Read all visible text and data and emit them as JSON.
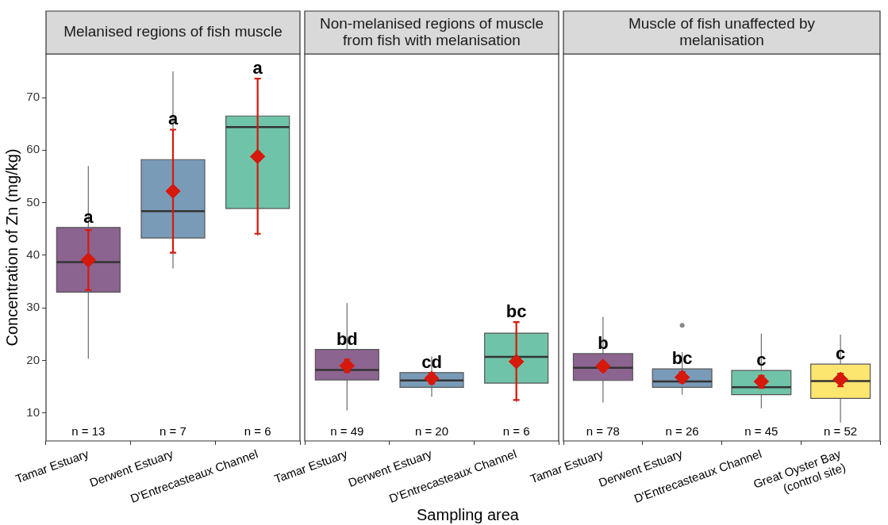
{
  "chart_data": [
    {
      "type": "box",
      "title": "Melanised regions of fish muscle",
      "ylabel": "Concentration of Zn (mg/kg)",
      "categories": [
        "Tamar Estuary",
        "Derwent Estuary",
        "D'Entrecasteaux Channel"
      ],
      "colors": [
        "#8c6490",
        "#7a9bb8",
        "#6fc3a8"
      ],
      "boxes": [
        {
          "low": 20.3,
          "q1": 33.0,
          "median": 38.7,
          "q3": 45.3,
          "high": 57.0
        },
        {
          "low": 37.5,
          "q1": 43.3,
          "median": 48.4,
          "q3": 58.2,
          "high": 75.0
        },
        {
          "low": 43.7,
          "q1": 48.9,
          "median": 64.4,
          "q3": 66.5,
          "high": 70.8
        }
      ],
      "series": [
        {
          "type": "scatter",
          "color": "#d7190c",
          "x": [
            "Tamar Estuary",
            "Derwent Estuary",
            "D'Entrecasteaux Channel"
          ],
          "values": [
            39.1,
            52.2,
            58.8
          ],
          "errors": [
            [
              33.4,
              44.8
            ],
            [
              40.5,
              63.9
            ],
            [
              44.1,
              73.6
            ]
          ]
        }
      ],
      "marker": "diamond",
      "ylim": [
        4.7,
        78.3
      ],
      "yticks": [
        10,
        20,
        30,
        40,
        50,
        60,
        70
      ],
      "grid": false,
      "annotations": [
        {
          "text": "a",
          "x": "Tamar Estuary",
          "y": 45.3
        },
        {
          "text": "a",
          "x": "Derwent Estuary",
          "y": 63.9
        },
        {
          "text": "a",
          "x": "D'Entrecasteaux Channel",
          "y": 73.6
        },
        "n = 13",
        "n = 7",
        "n = 6"
      ]
    },
    {
      "type": "box",
      "title": "Non-melanised regions of muscle from fish with melanisation",
      "xlabel": "Sampling area",
      "categories": [
        "Tamar Estuary",
        "Derwent Estuary",
        "D'Entrecasteaux Channel"
      ],
      "colors": [
        "#8c6490",
        "#7a9bb8",
        "#6fc3a8"
      ],
      "boxes": [
        {
          "low": 10.5,
          "q1": 16.3,
          "median": 18.2,
          "q3": 22.1,
          "high": 30.9
        },
        {
          "low": 13.1,
          "q1": 14.9,
          "median": 16.2,
          "q3": 17.7,
          "high": 20.8
        },
        {
          "low": 12.1,
          "q1": 15.7,
          "median": 20.7,
          "q3": 25.2,
          "high": 25.7
        }
      ],
      "series": [
        {
          "type": "scatter",
          "color": "#d7190c",
          "x": [
            "Tamar Estuary",
            "Derwent Estuary",
            "D'Entrecasteaux Channel"
          ],
          "values": [
            19.0,
            16.6,
            19.8
          ],
          "errors": [
            [
              17.8,
              20.2
            ],
            [
              15.6,
              17.6
            ],
            [
              12.5,
              27.3
            ]
          ]
        }
      ],
      "marker": "diamond",
      "ylim": [
        4.7,
        78.3
      ],
      "yticks": [
        10,
        20,
        30,
        40,
        50,
        60,
        70
      ],
      "grid": false,
      "tick_labels": "x",
      "annotations": [
        {
          "text": "bd",
          "x": "Tamar Estuary",
          "y": 22.1
        },
        {
          "text": "cd",
          "x": "Derwent Estuary",
          "y": 17.7
        },
        {
          "text": "bc",
          "x": "D'Entrecasteaux Channel",
          "y": 27.3
        },
        "n = 49",
        "n = 20",
        "n = 6"
      ]
    },
    {
      "type": "box",
      "title": "Muscle of fish unaffected by melanisation",
      "categories": [
        "Tamar Estuary",
        "Derwent Estuary",
        "D'Entrecasteaux Channel",
        "Great Oyster Bay\n(control site)"
      ],
      "colors": [
        "#8c6490",
        "#7a9bb8",
        "#6fc3a8",
        "#fde66f"
      ],
      "boxes": [
        {
          "low": 12.0,
          "q1": 16.2,
          "median": 18.6,
          "q3": 21.3,
          "high": 28.3
        },
        {
          "low": 13.5,
          "q1": 14.9,
          "median": 16.0,
          "q3": 18.4,
          "high": 21.6,
          "outliers": [
            26.7
          ]
        },
        {
          "low": 10.9,
          "q1": 13.5,
          "median": 14.9,
          "q3": 18.1,
          "high": 25.1
        },
        {
          "low": 8.2,
          "q1": 12.8,
          "median": 16.1,
          "q3": 19.3,
          "high": 24.9
        }
      ],
      "series": [
        {
          "type": "scatter",
          "color": "#d7190c",
          "x": [
            "Tamar Estuary",
            "Derwent Estuary",
            "D'Entrecasteaux Channel",
            "Great Oyster Bay\n(control site)"
          ],
          "values": [
            18.9,
            16.8,
            16.0,
            16.4
          ],
          "errors": [
            [
              18.0,
              19.7
            ],
            [
              15.8,
              17.8
            ],
            [
              14.8,
              17.1
            ],
            [
              15.1,
              17.5
            ]
          ]
        }
      ],
      "marker": "diamond",
      "ylim": [
        4.7,
        78.3
      ],
      "yticks": [
        10,
        20,
        30,
        40,
        50,
        60,
        70
      ],
      "grid": false,
      "tick_labels": "x",
      "annotations": [
        {
          "text": "b",
          "x": "Tamar Estuary",
          "y": 21.3
        },
        {
          "text": "bc",
          "x": "Derwent Estuary",
          "y": 18.4
        },
        {
          "text": "c",
          "x": "D'Entrecasteaux Channel",
          "y": 18.1
        },
        {
          "text": "c",
          "x": "Great Oyster Bay\n(control site)",
          "y": 19.3
        },
        "n = 78",
        "n = 26",
        "n = 45",
        "n = 52"
      ]
    }
  ]
}
